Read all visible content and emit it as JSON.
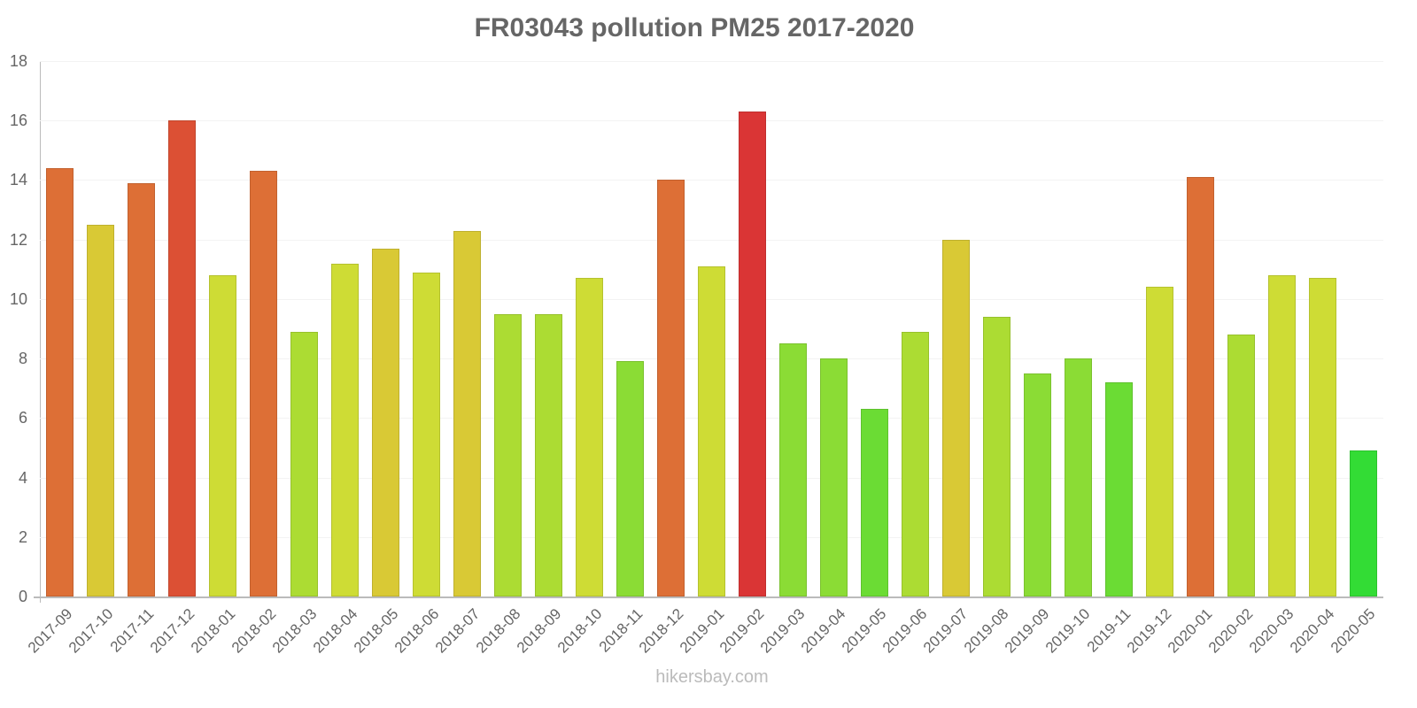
{
  "chart_data": {
    "type": "bar",
    "title": "FR03043 pollution PM25 2017-2020",
    "xlabel": "",
    "ylabel": "",
    "ylim": [
      0,
      18
    ],
    "yticks": [
      0,
      2,
      4,
      6,
      8,
      10,
      12,
      14,
      16,
      18
    ],
    "grid": true,
    "legend": null,
    "categories": [
      "2017-09",
      "2017-10",
      "2017-11",
      "2017-12",
      "2018-01",
      "2018-02",
      "2018-03",
      "2018-04",
      "2018-05",
      "2018-06",
      "2018-07",
      "2018-08",
      "2018-09",
      "2018-10",
      "2018-11",
      "2018-12",
      "2019-01",
      "2019-02",
      "2019-03",
      "2019-04",
      "2019-05",
      "2019-06",
      "2019-07",
      "2019-08",
      "2019-09",
      "2019-10",
      "2019-11",
      "2019-12",
      "2020-01",
      "2020-02",
      "2020-03",
      "2020-04",
      "2020-05"
    ],
    "values": [
      14.4,
      12.5,
      13.9,
      16.0,
      10.8,
      14.3,
      8.9,
      11.2,
      11.7,
      10.9,
      12.3,
      9.5,
      9.5,
      10.7,
      7.9,
      14.0,
      11.1,
      16.3,
      8.5,
      8.0,
      6.3,
      8.9,
      12.0,
      9.4,
      7.5,
      8.0,
      7.2,
      10.4,
      14.1,
      8.8,
      10.8,
      10.7,
      4.9
    ],
    "colors": [
      "#dd6f36",
      "#d9c935",
      "#dd6f36",
      "#dc5034",
      "#cedc35",
      "#dd6f36",
      "#acdc33",
      "#cedc35",
      "#d9c935",
      "#cedc35",
      "#d9c935",
      "#acdc33",
      "#acdc33",
      "#cedc35",
      "#8bdc35",
      "#dd6f36",
      "#cedc35",
      "#da3535",
      "#8bdc35",
      "#8bdc35",
      "#6bdc34",
      "#acdc33",
      "#d9c935",
      "#acdc33",
      "#8bdc35",
      "#8bdc35",
      "#6bdc34",
      "#cedc35",
      "#dd6f36",
      "#acdc33",
      "#cedc35",
      "#cedc35",
      "#33dc35"
    ]
  },
  "watermark": "hikersbay.com"
}
